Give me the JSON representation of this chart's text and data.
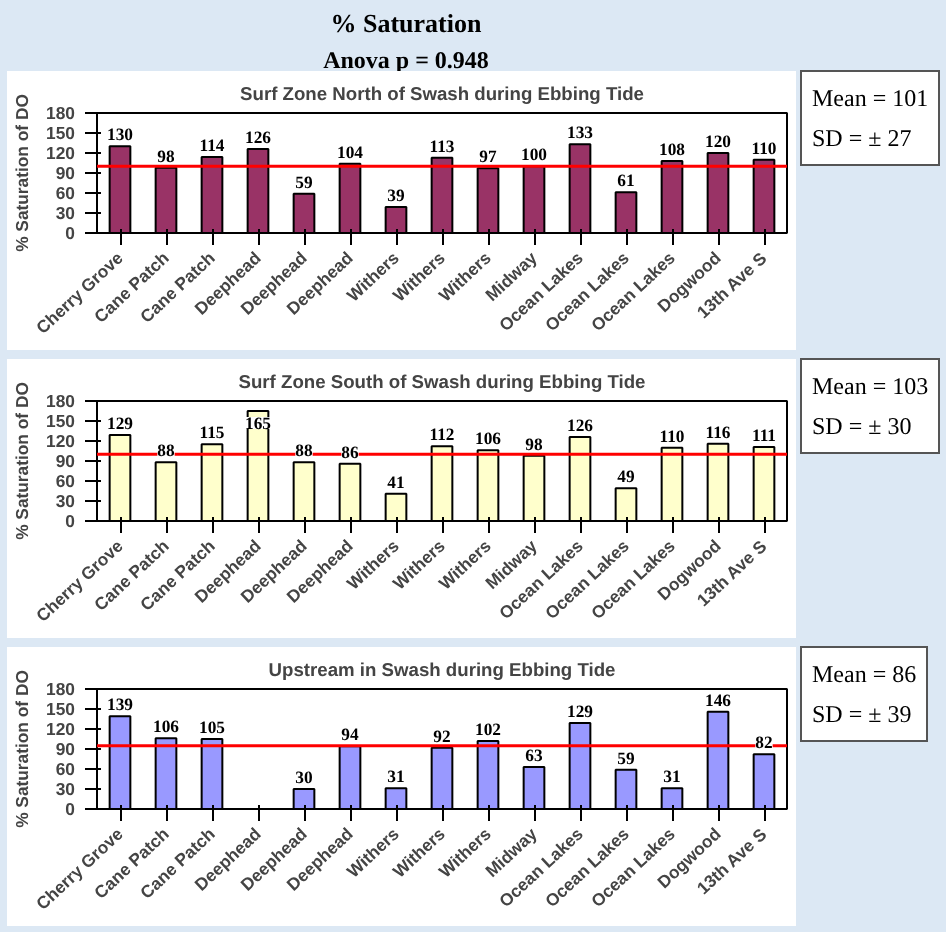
{
  "chart_data": [
    {
      "type": "bar",
      "title": "Surf Zone North of Swash during Ebbing Tide",
      "ylabel": "% Saturation of DO",
      "categories": [
        "Cherry Grove",
        "Cane Patch",
        "Cane Patch",
        "Deephead",
        "Deephead",
        "Deephead",
        "Withers",
        "Withers",
        "Withers",
        "Midway",
        "Ocean Lakes",
        "Ocean Lakes",
        "Ocean Lakes",
        "Dogwood",
        "13th Ave S"
      ],
      "values": [
        130,
        98,
        114,
        126,
        59,
        104,
        39,
        113,
        97,
        100,
        133,
        61,
        108,
        120,
        110
      ],
      "color": "#993366",
      "data_labels": true,
      "ylim": [
        0,
        180
      ],
      "yticks": [
        0,
        30,
        60,
        90,
        120,
        150,
        180
      ],
      "grid": false,
      "ref_lines": [
        {
          "axis": "y",
          "value": 100,
          "color": "#ff0000"
        }
      ],
      "annotations": [
        "% Saturation",
        "Anova p = 0.948",
        "Mean = 101",
        "SD = ± 27"
      ]
    },
    {
      "type": "bar",
      "title": "Surf Zone South of Swash during Ebbing Tide",
      "ylabel": "% Saturation of DO",
      "categories": [
        "Cherry Grove",
        "Cane Patch",
        "Cane Patch",
        "Deephead",
        "Deephead",
        "Deephead",
        "Withers",
        "Withers",
        "Withers",
        "Midway",
        "Ocean Lakes",
        "Ocean Lakes",
        "Ocean Lakes",
        "Dogwood",
        "13th Ave S"
      ],
      "values": [
        129,
        88,
        115,
        165,
        88,
        86,
        41,
        112,
        106,
        98,
        126,
        49,
        110,
        116,
        111
      ],
      "color": "#ffffcc",
      "data_labels": true,
      "ylim": [
        0,
        180
      ],
      "yticks": [
        0,
        30,
        60,
        90,
        120,
        150,
        180
      ],
      "grid": false,
      "ref_lines": [
        {
          "axis": "y",
          "value": 100,
          "color": "#ff0000"
        }
      ],
      "annotations": [
        "Mean = 103",
        "SD = ± 30"
      ]
    },
    {
      "type": "bar",
      "title": "Upstream in Swash during Ebbing Tide",
      "ylabel": "% Saturation of DO",
      "categories": [
        "Cherry Grove",
        "Cane Patch",
        "Cane Patch",
        "Deephead",
        "Deephead",
        "Deephead",
        "Withers",
        "Withers",
        "Withers",
        "Midway",
        "Ocean Lakes",
        "Ocean Lakes",
        "Ocean Lakes",
        "Dogwood",
        "13th Ave S"
      ],
      "values": [
        139,
        106,
        105,
        null,
        30,
        94,
        31,
        92,
        102,
        63,
        129,
        59,
        31,
        146,
        82
      ],
      "color": "#9999ff",
      "data_labels": true,
      "ylim": [
        0,
        180
      ],
      "yticks": [
        0,
        30,
        60,
        90,
        120,
        150,
        180
      ],
      "grid": false,
      "ref_lines": [
        {
          "axis": "y",
          "value": 95,
          "color": "#ff0000"
        }
      ],
      "annotations": [
        "Mean = 86",
        "SD = ± 39"
      ]
    }
  ]
}
